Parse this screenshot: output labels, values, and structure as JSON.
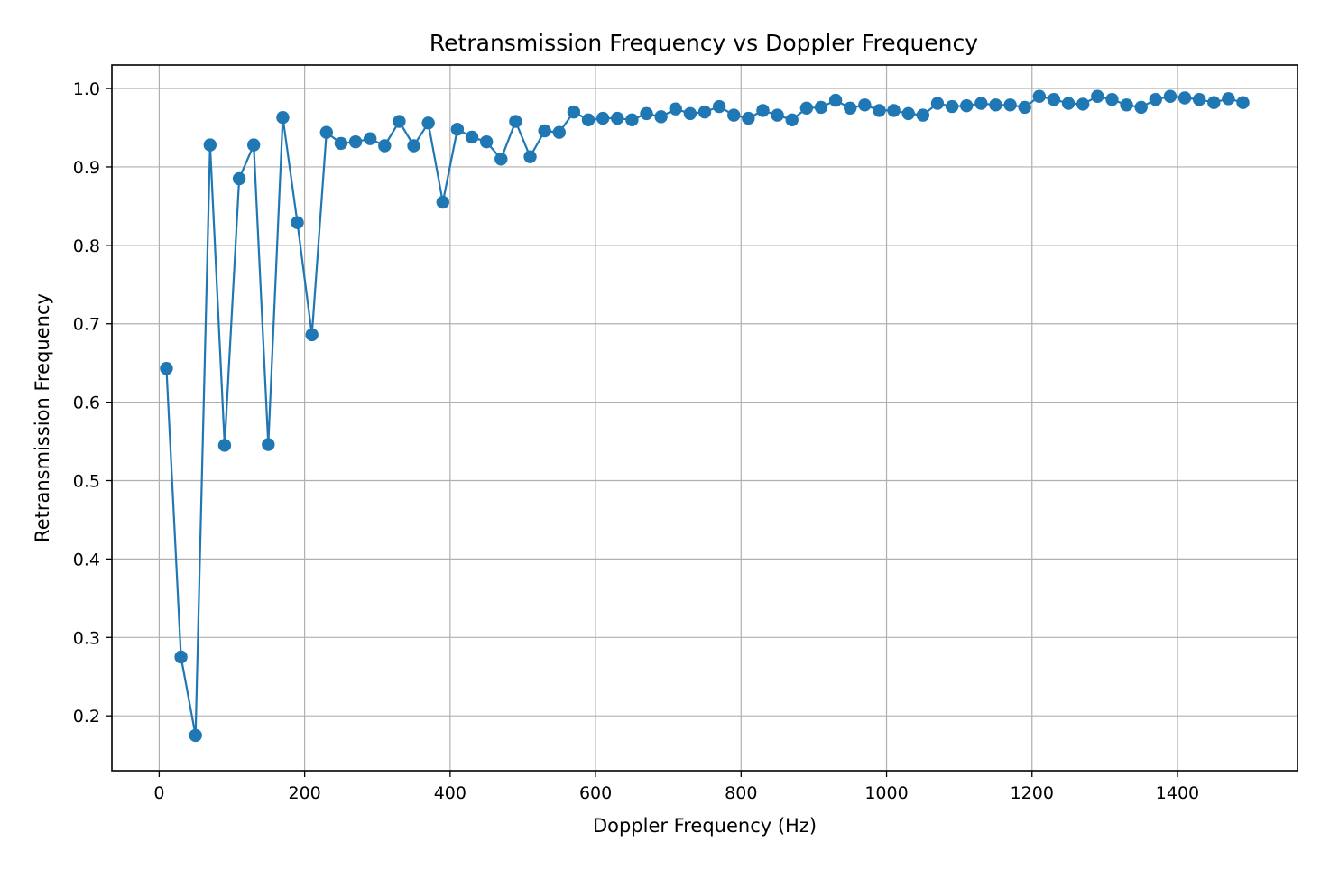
{
  "chart_data": {
    "type": "line",
    "title": "Retransmission Frequency vs Doppler Frequency",
    "xlabel": "Doppler Frequency (Hz)",
    "ylabel": "Retransmission Frequency",
    "xlim": [
      -65,
      1565
    ],
    "ylim": [
      0.13,
      1.03
    ],
    "xticks": [
      0,
      200,
      400,
      600,
      800,
      1000,
      1200,
      1400
    ],
    "yticks": [
      0.2,
      0.3,
      0.4,
      0.5,
      0.6,
      0.7,
      0.8,
      0.9,
      1.0
    ],
    "xtick_labels": [
      "0",
      "200",
      "400",
      "600",
      "800",
      "1000",
      "1200",
      "1400"
    ],
    "ytick_labels": [
      "0.2",
      "0.3",
      "0.4",
      "0.5",
      "0.6",
      "0.7",
      "0.8",
      "0.9",
      "1.0"
    ],
    "grid": true,
    "marker": "circle",
    "color": "#1f77b4",
    "series": [
      {
        "x": [
          10,
          30,
          50,
          70,
          90,
          110,
          130,
          150,
          170,
          190,
          210,
          230,
          250,
          270,
          290,
          310,
          330,
          350,
          370,
          390,
          410,
          430,
          450,
          470,
          490,
          510,
          530,
          550,
          570,
          590,
          610,
          630,
          650,
          670,
          690,
          710,
          730,
          750,
          770,
          790,
          810,
          830,
          850,
          870,
          890,
          910,
          930,
          950,
          970,
          990,
          1010,
          1030,
          1050,
          1070,
          1090,
          1110,
          1130,
          1150,
          1170,
          1190,
          1210,
          1230,
          1250,
          1270,
          1290,
          1310,
          1330,
          1350,
          1370,
          1390,
          1410,
          1430,
          1450,
          1470,
          1490
        ],
        "y": [
          0.643,
          0.275,
          0.175,
          0.928,
          0.545,
          0.885,
          0.928,
          0.546,
          0.963,
          0.829,
          0.686,
          0.944,
          0.93,
          0.932,
          0.936,
          0.927,
          0.958,
          0.927,
          0.956,
          0.855,
          0.948,
          0.938,
          0.932,
          0.91,
          0.958,
          0.913,
          0.946,
          0.944,
          0.97,
          0.96,
          0.962,
          0.962,
          0.96,
          0.968,
          0.964,
          0.974,
          0.968,
          0.97,
          0.977,
          0.966,
          0.962,
          0.972,
          0.966,
          0.96,
          0.975,
          0.976,
          0.985,
          0.975,
          0.979,
          0.972,
          0.972,
          0.968,
          0.966,
          0.981,
          0.977,
          0.978,
          0.981,
          0.979,
          0.979,
          0.976,
          0.99,
          0.986,
          0.981,
          0.98,
          0.99,
          0.986,
          0.979,
          0.976,
          0.986,
          0.99,
          0.988,
          0.986,
          0.982,
          0.987,
          0.982
        ]
      }
    ]
  }
}
